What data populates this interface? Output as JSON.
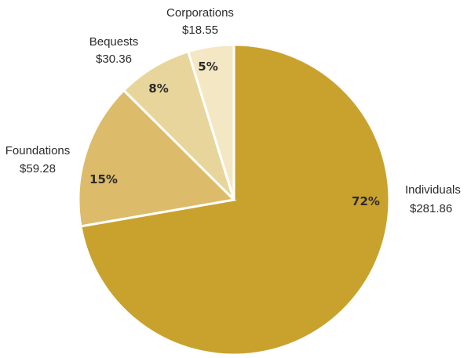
{
  "chart_data": {
    "type": "pie",
    "start_angle_deg": 0,
    "direction": "clockwise",
    "slices": [
      {
        "label": "Individuals",
        "amount": "$281.86",
        "value": 281.86,
        "percent_label": "72%",
        "color": "#C9A22E"
      },
      {
        "label": "Foundations",
        "amount": "$59.28",
        "value": 59.28,
        "percent_label": "15%",
        "color": "#DCBB6A"
      },
      {
        "label": "Bequests",
        "amount": "$30.36",
        "value": 30.36,
        "percent_label": "8%",
        "color": "#E8D59C"
      },
      {
        "label": "Corporations",
        "amount": "$18.55",
        "value": 18.55,
        "percent_label": "5%",
        "color": "#F4E7C4"
      }
    ]
  }
}
